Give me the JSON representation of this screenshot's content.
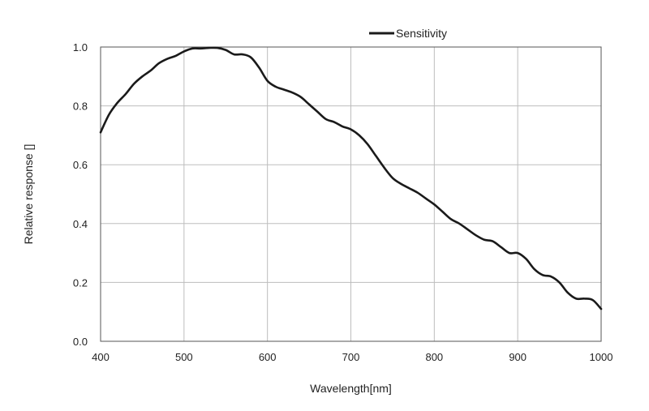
{
  "chart_data": {
    "type": "line",
    "xlabel": "Wavelength[nm]",
    "ylabel": "Relative response []",
    "xlim": [
      400,
      1000
    ],
    "ylim": [
      0,
      1.0
    ],
    "x_ticks": [
      "400",
      "500",
      "600",
      "700",
      "800",
      "900",
      "1000"
    ],
    "y_ticks": [
      "0.0",
      "0.2",
      "0.4",
      "0.6",
      "0.8",
      "1.0"
    ],
    "grid": true,
    "legend": {
      "position": "top-right",
      "entries": [
        "Sensitivity"
      ]
    },
    "series": [
      {
        "name": "Sensitivity",
        "color": "#1a1a1a",
        "x": [
          400,
          410,
          420,
          430,
          440,
          450,
          460,
          470,
          480,
          490,
          500,
          510,
          520,
          530,
          540,
          550,
          560,
          570,
          580,
          590,
          600,
          610,
          620,
          630,
          640,
          650,
          660,
          670,
          680,
          690,
          700,
          710,
          720,
          730,
          740,
          750,
          760,
          770,
          780,
          790,
          800,
          810,
          820,
          830,
          840,
          850,
          860,
          870,
          880,
          890,
          900,
          910,
          920,
          930,
          940,
          950,
          960,
          970,
          980,
          990,
          1000
        ],
        "y": [
          0.71,
          0.77,
          0.81,
          0.84,
          0.875,
          0.9,
          0.92,
          0.945,
          0.96,
          0.97,
          0.985,
          0.995,
          0.995,
          0.997,
          0.997,
          0.99,
          0.975,
          0.975,
          0.965,
          0.93,
          0.885,
          0.865,
          0.855,
          0.845,
          0.83,
          0.805,
          0.78,
          0.755,
          0.745,
          0.73,
          0.72,
          0.7,
          0.67,
          0.63,
          0.59,
          0.555,
          0.535,
          0.52,
          0.505,
          0.485,
          0.465,
          0.44,
          0.415,
          0.4,
          0.38,
          0.36,
          0.345,
          0.34,
          0.32,
          0.3,
          0.3,
          0.28,
          0.245,
          0.225,
          0.22,
          0.2,
          0.165,
          0.145,
          0.145,
          0.14,
          0.11
        ]
      }
    ]
  }
}
